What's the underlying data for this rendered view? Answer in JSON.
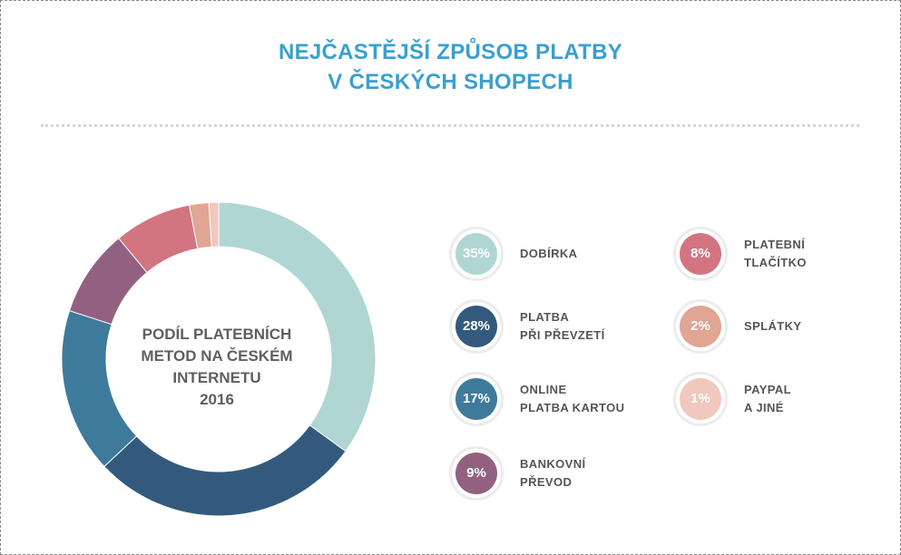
{
  "title": {
    "line1": "NEJČASTĚJŠÍ ZPŮSOB PLATBY",
    "line2": "V ČESKÝCH SHOPECH"
  },
  "center_label": {
    "line1": "PODÍL PLATEBNÍCH",
    "line2": "METOD NA ČESKÉM",
    "line3": "INTERNETU",
    "line4": "2016"
  },
  "legend": [
    {
      "percent": "35%",
      "line1": "DOBÍRKA",
      "line2": "",
      "color": "#b0d6d4"
    },
    {
      "percent": "28%",
      "line1": "PLATBA",
      "line2": "PŘI PŘEVZETÍ",
      "color": "#335a7c"
    },
    {
      "percent": "17%",
      "line1": "ONLINE",
      "line2": "PLATBA KARTOU",
      "color": "#3e7a9b"
    },
    {
      "percent": "9%",
      "line1": "BANKOVNÍ",
      "line2": "PŘEVOD",
      "color": "#936180"
    },
    {
      "percent": "8%",
      "line1": "PLATEBNÍ",
      "line2": "TLAČÍTKO",
      "color": "#d37580"
    },
    {
      "percent": "2%",
      "line1": "SPLÁTKY",
      "line2": "",
      "color": "#e0a593"
    },
    {
      "percent": "1%",
      "line1": "PAYPAL",
      "line2": "A JINÉ",
      "color": "#f0c8bd"
    }
  ],
  "chart_data": {
    "type": "pie",
    "variant": "donut",
    "categories": [
      "DOBÍRKA",
      "PLATBA PŘI PŘEVZETÍ",
      "ONLINE PLATBA KARTOU",
      "BANKOVNÍ PŘEVOD",
      "PLATEBNÍ TLAČÍTKO",
      "SPLÁTKY",
      "PAYPAL A JINÉ"
    ],
    "values": [
      35,
      28,
      17,
      9,
      8,
      2,
      1
    ],
    "colors": [
      "#b0d6d4",
      "#335a7c",
      "#3e7a9b",
      "#936180",
      "#d37580",
      "#e0a593",
      "#f0c8bd"
    ],
    "title": "NEJČASTĚJŠÍ ZPŮSOB PLATBY V ČESKÝCH SHOPECH",
    "legend": "right"
  }
}
